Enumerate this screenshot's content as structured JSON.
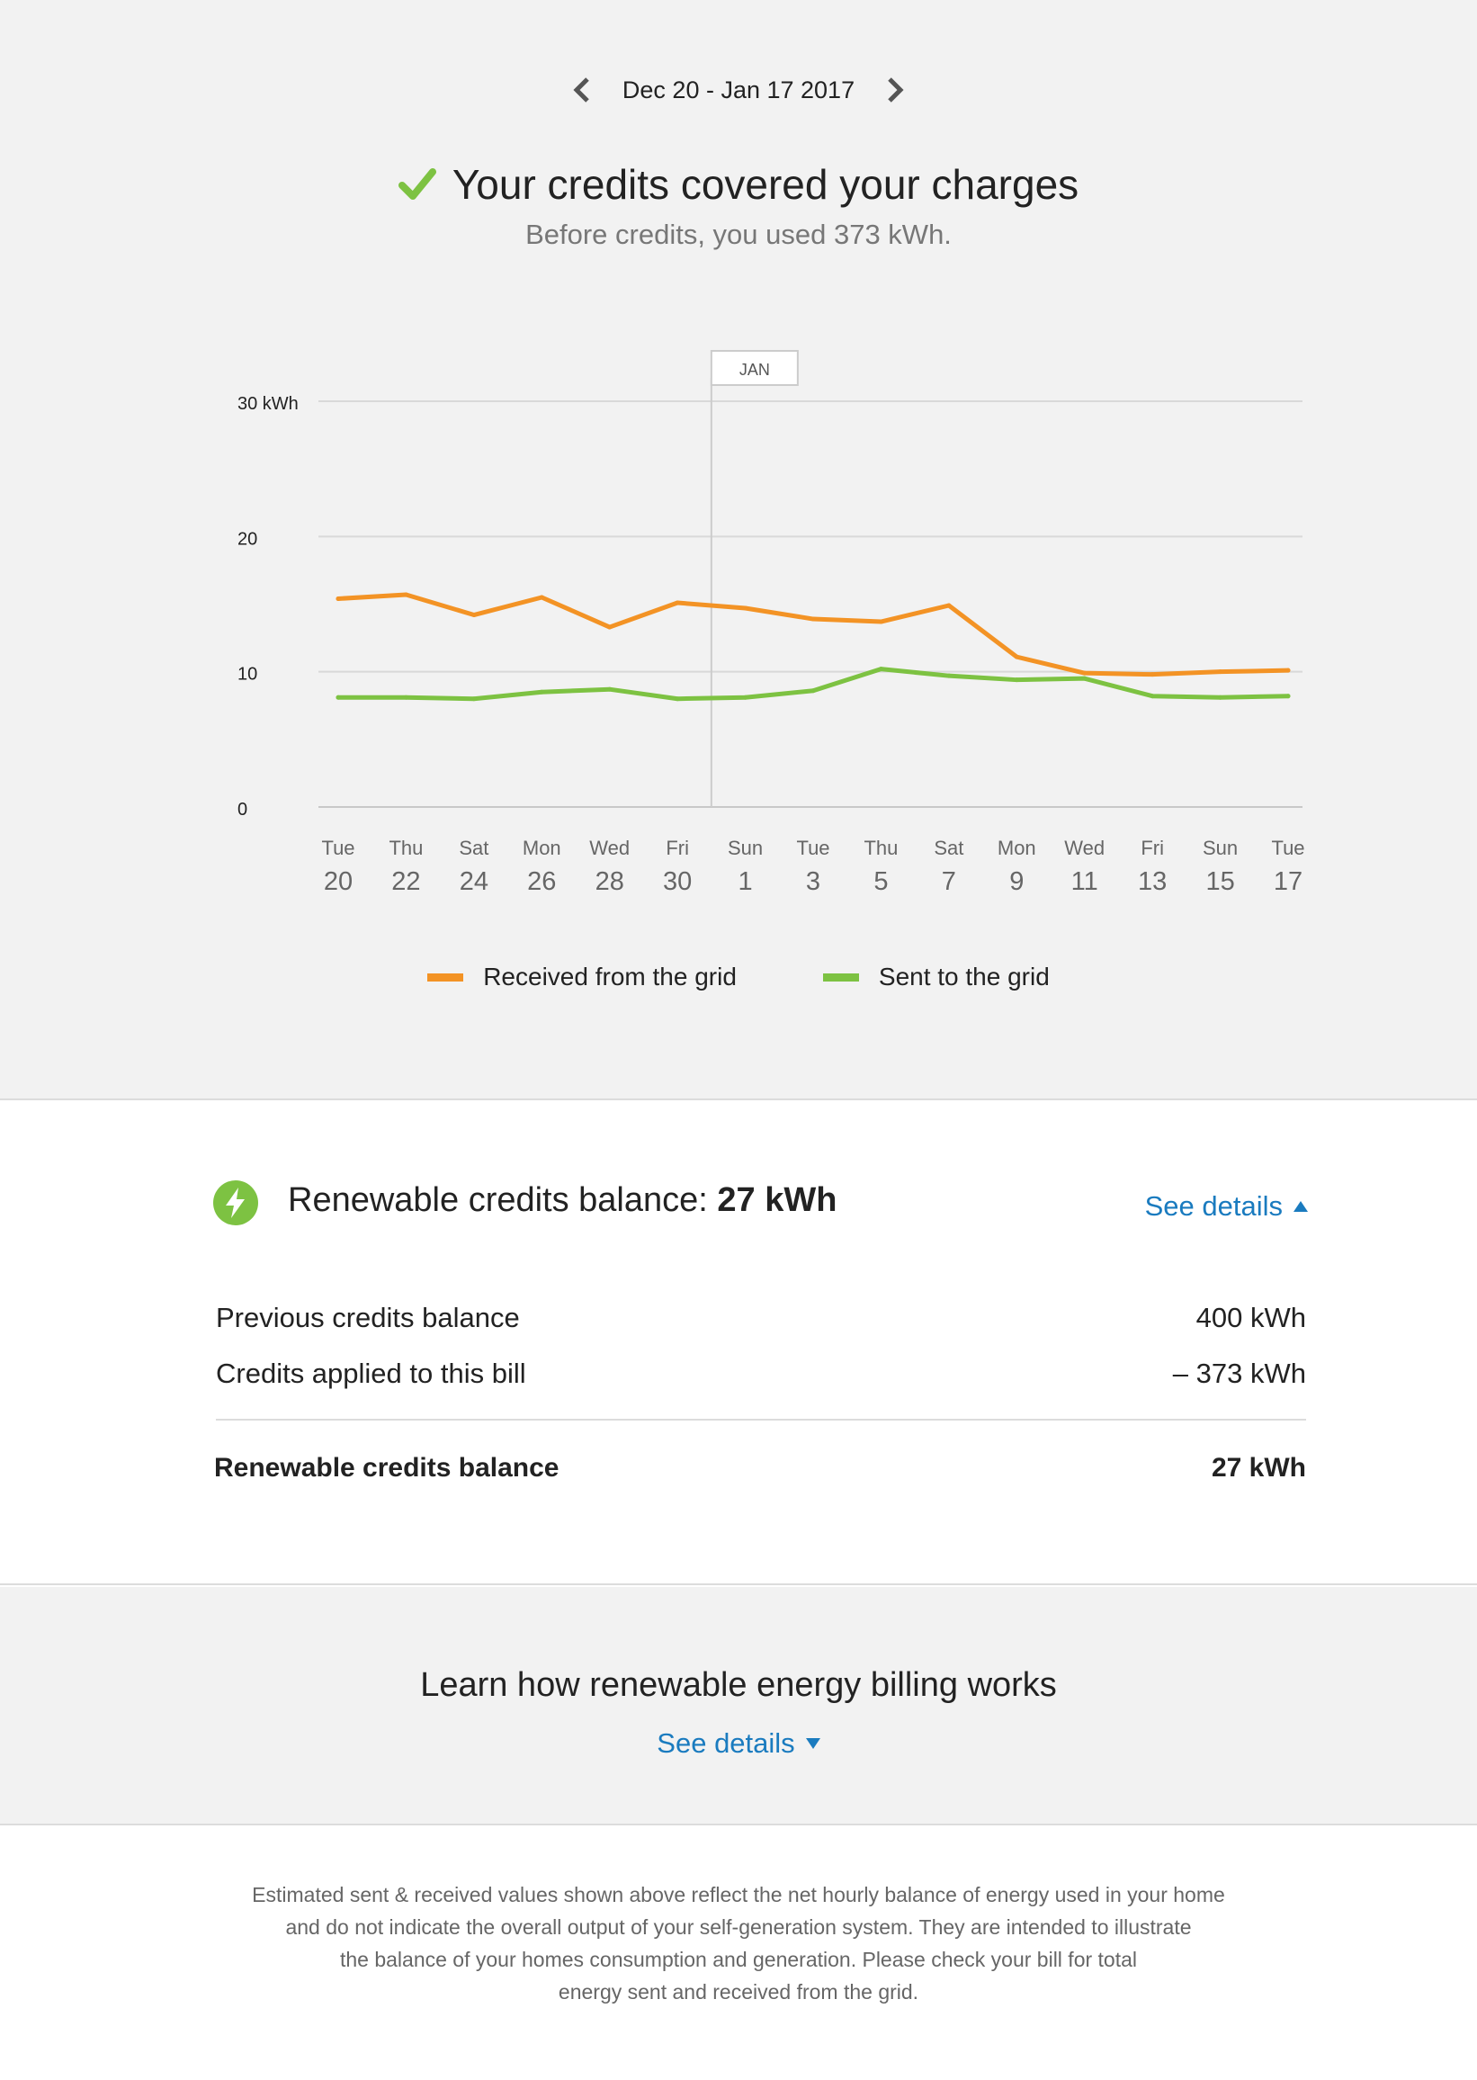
{
  "date_nav": {
    "range": "Dec 20 - Jan 17 2017",
    "prev_icon": "chevron-left-icon",
    "next_icon": "chevron-right-icon"
  },
  "headline": {
    "title": "Your credits covered your charges",
    "subtitle": "Before credits, you used 373 kWh.",
    "icon": "check-icon",
    "icon_color": "#7dc242"
  },
  "chart_data": {
    "type": "line",
    "title": "",
    "xlabel": "",
    "ylabel": "",
    "ylim": [
      0,
      30
    ],
    "y_ticks": [
      {
        "value": 30,
        "label": "30 kWh"
      },
      {
        "value": 20,
        "label": "20"
      },
      {
        "value": 10,
        "label": "10"
      },
      {
        "value": 0,
        "label": "0"
      }
    ],
    "grid": true,
    "categories": [
      {
        "day": "Tue",
        "date": "20"
      },
      {
        "day": "Thu",
        "date": "22"
      },
      {
        "day": "Sat",
        "date": "24"
      },
      {
        "day": "Mon",
        "date": "26"
      },
      {
        "day": "Wed",
        "date": "28"
      },
      {
        "day": "Fri",
        "date": "30"
      },
      {
        "day": "Sun",
        "date": "1"
      },
      {
        "day": "Tue",
        "date": "3"
      },
      {
        "day": "Thu",
        "date": "5"
      },
      {
        "day": "Sat",
        "date": "7"
      },
      {
        "day": "Mon",
        "date": "9"
      },
      {
        "day": "Wed",
        "date": "11"
      },
      {
        "day": "Fri",
        "date": "13"
      },
      {
        "day": "Sun",
        "date": "15"
      },
      {
        "day": "Tue",
        "date": "17"
      }
    ],
    "month_marker": {
      "label": "JAN",
      "at_index": 5.5
    },
    "series": [
      {
        "name": "Received from the grid",
        "color": "#f39325",
        "values": [
          15.4,
          15.7,
          14.2,
          15.5,
          13.3,
          15.1,
          14.7,
          13.9,
          13.7,
          14.9,
          11.1,
          9.9,
          9.8,
          10.0,
          10.1
        ]
      },
      {
        "name": "Sent to the grid",
        "color": "#7dc242",
        "values": [
          8.1,
          8.1,
          8.0,
          8.5,
          8.7,
          8.0,
          8.1,
          8.6,
          10.2,
          9.7,
          9.4,
          9.5,
          8.2,
          8.1,
          8.2
        ]
      }
    ],
    "legend_placement": "bottom"
  },
  "credits": {
    "icon": "lightning-bolt-icon",
    "title_prefix": "Renewable credits balance: ",
    "title_value": "27 kWh",
    "see_details": "See details",
    "rows": [
      {
        "label": "Previous credits balance",
        "value": "400 kWh"
      },
      {
        "label": "Credits applied to this bill",
        "value": "– 373 kWh"
      }
    ],
    "total": {
      "label": "Renewable credits balance",
      "value": "27 kWh"
    }
  },
  "learn": {
    "title": "Learn how renewable energy billing works",
    "see_details": "See details"
  },
  "disclaimer": {
    "lines": [
      "Estimated sent & received values shown above reflect the net hourly balance of energy used in your home",
      "and do not indicate the overall output of your self-generation system. They are intended to illustrate",
      "the balance of your homes consumption and generation. Please check your bill for total",
      "energy sent and received from the grid."
    ]
  }
}
